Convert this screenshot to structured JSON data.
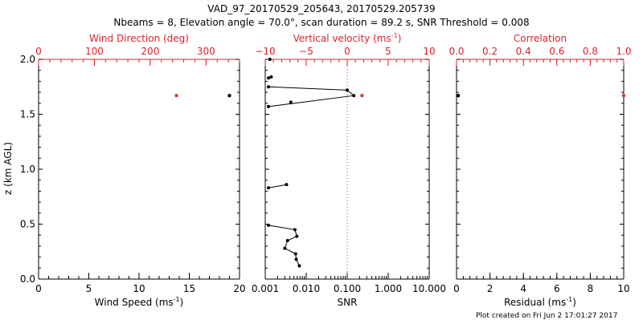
{
  "chart_data": {
    "title": "VAD_97_20170529_205643, 20170529.205739",
    "subtitle": "Nbeams = 8, Elevation angle = 70.0°, scan duration = 89.2 s, SNR Threshold = 0.008",
    "footer": "Plot created on Fri Jun  2 17:01:27 2017",
    "ylabel": "z (km AGL)",
    "ylim": [
      0,
      2.0
    ],
    "yticks": [
      "0.0",
      "0.5",
      "1.0",
      "1.5",
      "2.0"
    ],
    "yticks_values": [
      0,
      0.5,
      1.0,
      1.5,
      2.0
    ],
    "colors": {
      "primary": "#000000",
      "secondary": "#e0202a",
      "marker_secondary": "#c8452a"
    },
    "panels": [
      {
        "type": "scatter",
        "xlabel_bottom": "Wind Speed (ms",
        "xlabel_bottom_sup": "-1",
        "xlabel_bottom_end": ")",
        "xlim_bottom": [
          0,
          20
        ],
        "xticks_bottom": [
          "0",
          "5",
          "10",
          "15",
          "20"
        ],
        "xticks_bottom_values": [
          0,
          5,
          10,
          15,
          20
        ],
        "xlabel_top": "Wind Direction (deg)",
        "xlim_top": [
          0,
          360
        ],
        "xticks_top": [
          "0",
          "100",
          "200",
          "300"
        ],
        "xticks_top_values": [
          0,
          100,
          200,
          300
        ],
        "series": [
          {
            "axis": "bottom",
            "color": "black",
            "points": [
              [
                19.0,
                1.67
              ]
            ]
          },
          {
            "axis": "top",
            "color": "red",
            "points": [
              [
                247,
                1.67
              ]
            ]
          }
        ]
      },
      {
        "type": "line",
        "xlabel_bottom": "SNR",
        "xscale_bottom": "log",
        "xlim_bottom": [
          0.001,
          10
        ],
        "xticks_bottom": [
          "0.001",
          "0.010",
          "0.100",
          "1.000",
          "10.000"
        ],
        "xticks_bottom_values": [
          0.001,
          0.01,
          0.1,
          1,
          10
        ],
        "xlabel_top": "Vertical velocity (ms",
        "xlabel_top_sup": "-1",
        "xlabel_top_end": ")",
        "xlim_top": [
          -10,
          10
        ],
        "xticks_top": [
          "−10",
          "−5",
          "0",
          "5",
          "10"
        ],
        "xticks_top_values": [
          -10,
          -5,
          0,
          5,
          10
        ],
        "reference_line_top": 0,
        "snr_segments": [
          [
            [
              0.0013,
              2.0
            ]
          ],
          [
            [
              0.0014,
              1.84
            ],
            [
              0.0012,
              1.83
            ]
          ],
          [
            [
              0.0012,
              1.75
            ],
            [
              0.1,
              1.72
            ],
            [
              0.145,
              1.67
            ],
            [
              0.0012,
              1.57
            ]
          ],
          [
            [
              0.0042,
              1.61
            ]
          ],
          [
            [
              0.0012,
              0.83
            ],
            [
              0.0033,
              0.86
            ]
          ],
          [
            [
              0.0012,
              0.49
            ],
            [
              0.0053,
              0.45
            ],
            [
              0.0059,
              0.39
            ],
            [
              0.0035,
              0.35
            ],
            [
              0.003,
              0.28
            ],
            [
              0.0055,
              0.23
            ],
            [
              0.0057,
              0.18
            ],
            [
              0.0068,
              0.12
            ]
          ]
        ],
        "velocity_points": [
          [
            1.8,
            1.67
          ]
        ]
      },
      {
        "type": "scatter",
        "xlabel_bottom": "Residual (ms",
        "xlabel_bottom_sup": "-1",
        "xlabel_bottom_end": ")",
        "xlim_bottom": [
          0,
          10
        ],
        "xticks_bottom": [
          "0",
          "2",
          "4",
          "6",
          "8",
          "10"
        ],
        "xticks_bottom_values": [
          0,
          2,
          4,
          6,
          8,
          10
        ],
        "xlabel_top": "Correlation",
        "xlim_top": [
          0,
          1.0
        ],
        "xticks_top": [
          "0.0",
          "0.2",
          "0.4",
          "0.6",
          "0.8",
          "1.0"
        ],
        "xticks_top_values": [
          0,
          0.2,
          0.4,
          0.6,
          0.8,
          1.0
        ],
        "series": [
          {
            "axis": "bottom",
            "color": "black",
            "points": [
              [
                0.1,
                1.67
              ]
            ]
          },
          {
            "axis": "top",
            "color": "red",
            "points": [
              [
                1.0,
                1.67
              ]
            ]
          }
        ]
      }
    ]
  }
}
